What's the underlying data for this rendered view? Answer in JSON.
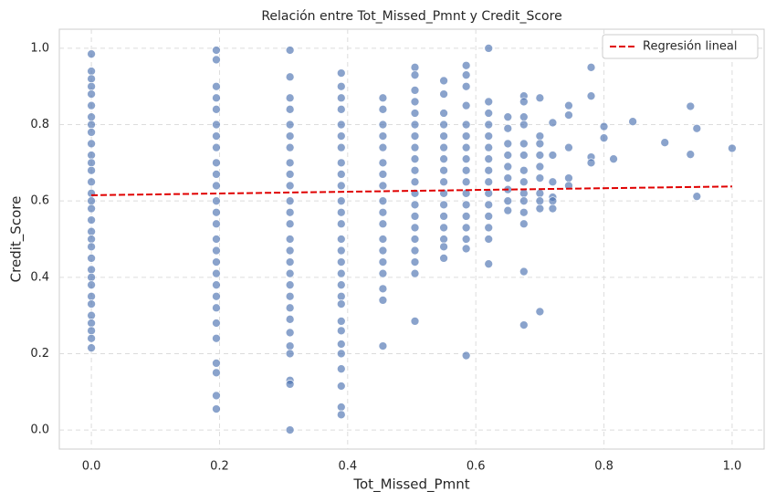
{
  "chart_data": {
    "type": "scatter",
    "title": "Relación entre Tot_Missed_Pmnt y Credit_Score",
    "x_label": "Tot_Missed_Pmnt",
    "y_label": "Credit_Score",
    "xlim": [
      -0.05,
      1.05
    ],
    "ylim": [
      -0.05,
      1.05
    ],
    "xticks": [
      {
        "value": 0,
        "label": "0.0"
      },
      0.2,
      0.4,
      0.6,
      0.8,
      {
        "value": 1,
        "label": "1.0"
      }
    ],
    "yticks": [
      {
        "value": 0,
        "label": "0.0"
      },
      0.2,
      0.4,
      0.6,
      0.8,
      {
        "value": 1,
        "label": "1.0"
      }
    ],
    "grid": true,
    "legend": "upper right",
    "color": "#4c72b0",
    "x": [
      0,
      0,
      0,
      0,
      0,
      0,
      0,
      0,
      0,
      0,
      0,
      0,
      0,
      0,
      0,
      0,
      0,
      0,
      0,
      0,
      0,
      0,
      0,
      0,
      0,
      0,
      0,
      0,
      0,
      0,
      0,
      0,
      0.195,
      0.195,
      0.195,
      0.195,
      0.195,
      0.195,
      0.195,
      0.195,
      0.195,
      0.195,
      0.195,
      0.195,
      0.195,
      0.195,
      0.195,
      0.195,
      0.195,
      0.195,
      0.195,
      0.195,
      0.195,
      0.195,
      0.195,
      0.195,
      0.195,
      0.195,
      0.195,
      0.31,
      0.31,
      0.31,
      0.31,
      0.31,
      0.31,
      0.31,
      0.31,
      0.31,
      0.31,
      0.31,
      0.31,
      0.31,
      0.31,
      0.31,
      0.31,
      0.31,
      0.31,
      0.31,
      0.31,
      0.31,
      0.31,
      0.31,
      0.31,
      0.31,
      0.31,
      0.31,
      0.39,
      0.39,
      0.39,
      0.39,
      0.39,
      0.39,
      0.39,
      0.39,
      0.39,
      0.39,
      0.39,
      0.39,
      0.39,
      0.39,
      0.39,
      0.39,
      0.39,
      0.39,
      0.39,
      0.39,
      0.39,
      0.39,
      0.39,
      0.39,
      0.39,
      0.39,
      0.39,
      0.39,
      0.455,
      0.455,
      0.455,
      0.455,
      0.455,
      0.455,
      0.455,
      0.455,
      0.455,
      0.455,
      0.455,
      0.455,
      0.455,
      0.455,
      0.455,
      0.455,
      0.455,
      0.455,
      0.505,
      0.505,
      0.505,
      0.505,
      0.505,
      0.505,
      0.505,
      0.505,
      0.505,
      0.505,
      0.505,
      0.505,
      0.505,
      0.505,
      0.505,
      0.505,
      0.505,
      0.505,
      0.505,
      0.505,
      0.55,
      0.55,
      0.55,
      0.55,
      0.55,
      0.55,
      0.55,
      0.55,
      0.55,
      0.55,
      0.55,
      0.55,
      0.55,
      0.55,
      0.55,
      0.55,
      0.585,
      0.585,
      0.585,
      0.585,
      0.585,
      0.585,
      0.585,
      0.585,
      0.585,
      0.585,
      0.585,
      0.585,
      0.585,
      0.585,
      0.585,
      0.585,
      0.585,
      0.62,
      0.62,
      0.62,
      0.62,
      0.62,
      0.62,
      0.62,
      0.62,
      0.62,
      0.62,
      0.62,
      0.62,
      0.62,
      0.62,
      0.62,
      0.65,
      0.65,
      0.65,
      0.65,
      0.65,
      0.65,
      0.65,
      0.65,
      0.65,
      0.675,
      0.675,
      0.675,
      0.675,
      0.675,
      0.675,
      0.675,
      0.675,
      0.675,
      0.675,
      0.675,
      0.675,
      0.675,
      0.675,
      0.7,
      0.7,
      0.7,
      0.7,
      0.7,
      0.7,
      0.7,
      0.7,
      0.7,
      0.7,
      0.72,
      0.72,
      0.72,
      0.72,
      0.72,
      0.72,
      0.745,
      0.745,
      0.745,
      0.745,
      0.745,
      0.78,
      0.78,
      0.78,
      0.78,
      0.8,
      0.8,
      0.815,
      0.845,
      0.895,
      0.935,
      0.935,
      0.945,
      0.945,
      1.0
    ],
    "values": [
      0.985,
      0.94,
      0.92,
      0.9,
      0.88,
      0.85,
      0.82,
      0.8,
      0.78,
      0.75,
      0.72,
      0.7,
      0.68,
      0.65,
      0.62,
      0.6,
      0.58,
      0.55,
      0.52,
      0.5,
      0.48,
      0.45,
      0.42,
      0.4,
      0.38,
      0.35,
      0.33,
      0.3,
      0.28,
      0.26,
      0.24,
      0.215,
      0.995,
      0.97,
      0.9,
      0.87,
      0.84,
      0.8,
      0.77,
      0.74,
      0.7,
      0.67,
      0.64,
      0.6,
      0.57,
      0.54,
      0.5,
      0.47,
      0.44,
      0.41,
      0.38,
      0.35,
      0.32,
      0.28,
      0.24,
      0.175,
      0.15,
      0.09,
      0.055,
      0.995,
      0.925,
      0.87,
      0.84,
      0.8,
      0.77,
      0.74,
      0.7,
      0.67,
      0.64,
      0.6,
      0.57,
      0.54,
      0.5,
      0.47,
      0.44,
      0.41,
      0.38,
      0.35,
      0.32,
      0.29,
      0.255,
      0.22,
      0.2,
      0.13,
      0.12,
      0.0,
      0.935,
      0.9,
      0.87,
      0.84,
      0.8,
      0.77,
      0.74,
      0.7,
      0.67,
      0.64,
      0.6,
      0.57,
      0.54,
      0.5,
      0.47,
      0.44,
      0.41,
      0.38,
      0.35,
      0.33,
      0.285,
      0.26,
      0.225,
      0.2,
      0.16,
      0.115,
      0.06,
      0.04,
      0.87,
      0.84,
      0.8,
      0.77,
      0.74,
      0.7,
      0.67,
      0.64,
      0.6,
      0.57,
      0.54,
      0.5,
      0.47,
      0.44,
      0.41,
      0.37,
      0.34,
      0.22,
      0.95,
      0.93,
      0.89,
      0.86,
      0.83,
      0.8,
      0.77,
      0.74,
      0.71,
      0.68,
      0.65,
      0.62,
      0.59,
      0.56,
      0.53,
      0.5,
      0.47,
      0.44,
      0.41,
      0.285,
      0.915,
      0.88,
      0.83,
      0.8,
      0.77,
      0.74,
      0.71,
      0.68,
      0.65,
      0.62,
      0.59,
      0.56,
      0.53,
      0.5,
      0.48,
      0.45,
      0.955,
      0.93,
      0.9,
      0.85,
      0.8,
      0.77,
      0.74,
      0.71,
      0.68,
      0.65,
      0.62,
      0.59,
      0.56,
      0.53,
      0.5,
      0.475,
      0.195,
      1.0,
      0.86,
      0.83,
      0.8,
      0.77,
      0.74,
      0.71,
      0.68,
      0.65,
      0.62,
      0.59,
      0.56,
      0.53,
      0.5,
      0.435,
      0.82,
      0.79,
      0.75,
      0.72,
      0.69,
      0.66,
      0.63,
      0.6,
      0.575,
      0.875,
      0.86,
      0.82,
      0.8,
      0.75,
      0.72,
      0.68,
      0.65,
      0.62,
      0.6,
      0.57,
      0.54,
      0.415,
      0.275,
      0.87,
      0.77,
      0.75,
      0.72,
      0.69,
      0.66,
      0.62,
      0.6,
      0.58,
      0.31,
      0.805,
      0.72,
      0.65,
      0.61,
      0.6,
      0.58,
      0.85,
      0.825,
      0.74,
      0.66,
      0.64,
      0.95,
      0.875,
      0.715,
      0.7,
      0.795,
      0.765,
      0.71,
      0.808,
      0.753,
      0.848,
      0.722,
      0.79,
      0.612,
      0.738
    ],
    "series": [
      {
        "name": "Regresión lineal",
        "type": "line",
        "color": "#e00000",
        "x": [
          0,
          1
        ],
        "values": [
          0.615,
          0.638
        ]
      }
    ]
  }
}
